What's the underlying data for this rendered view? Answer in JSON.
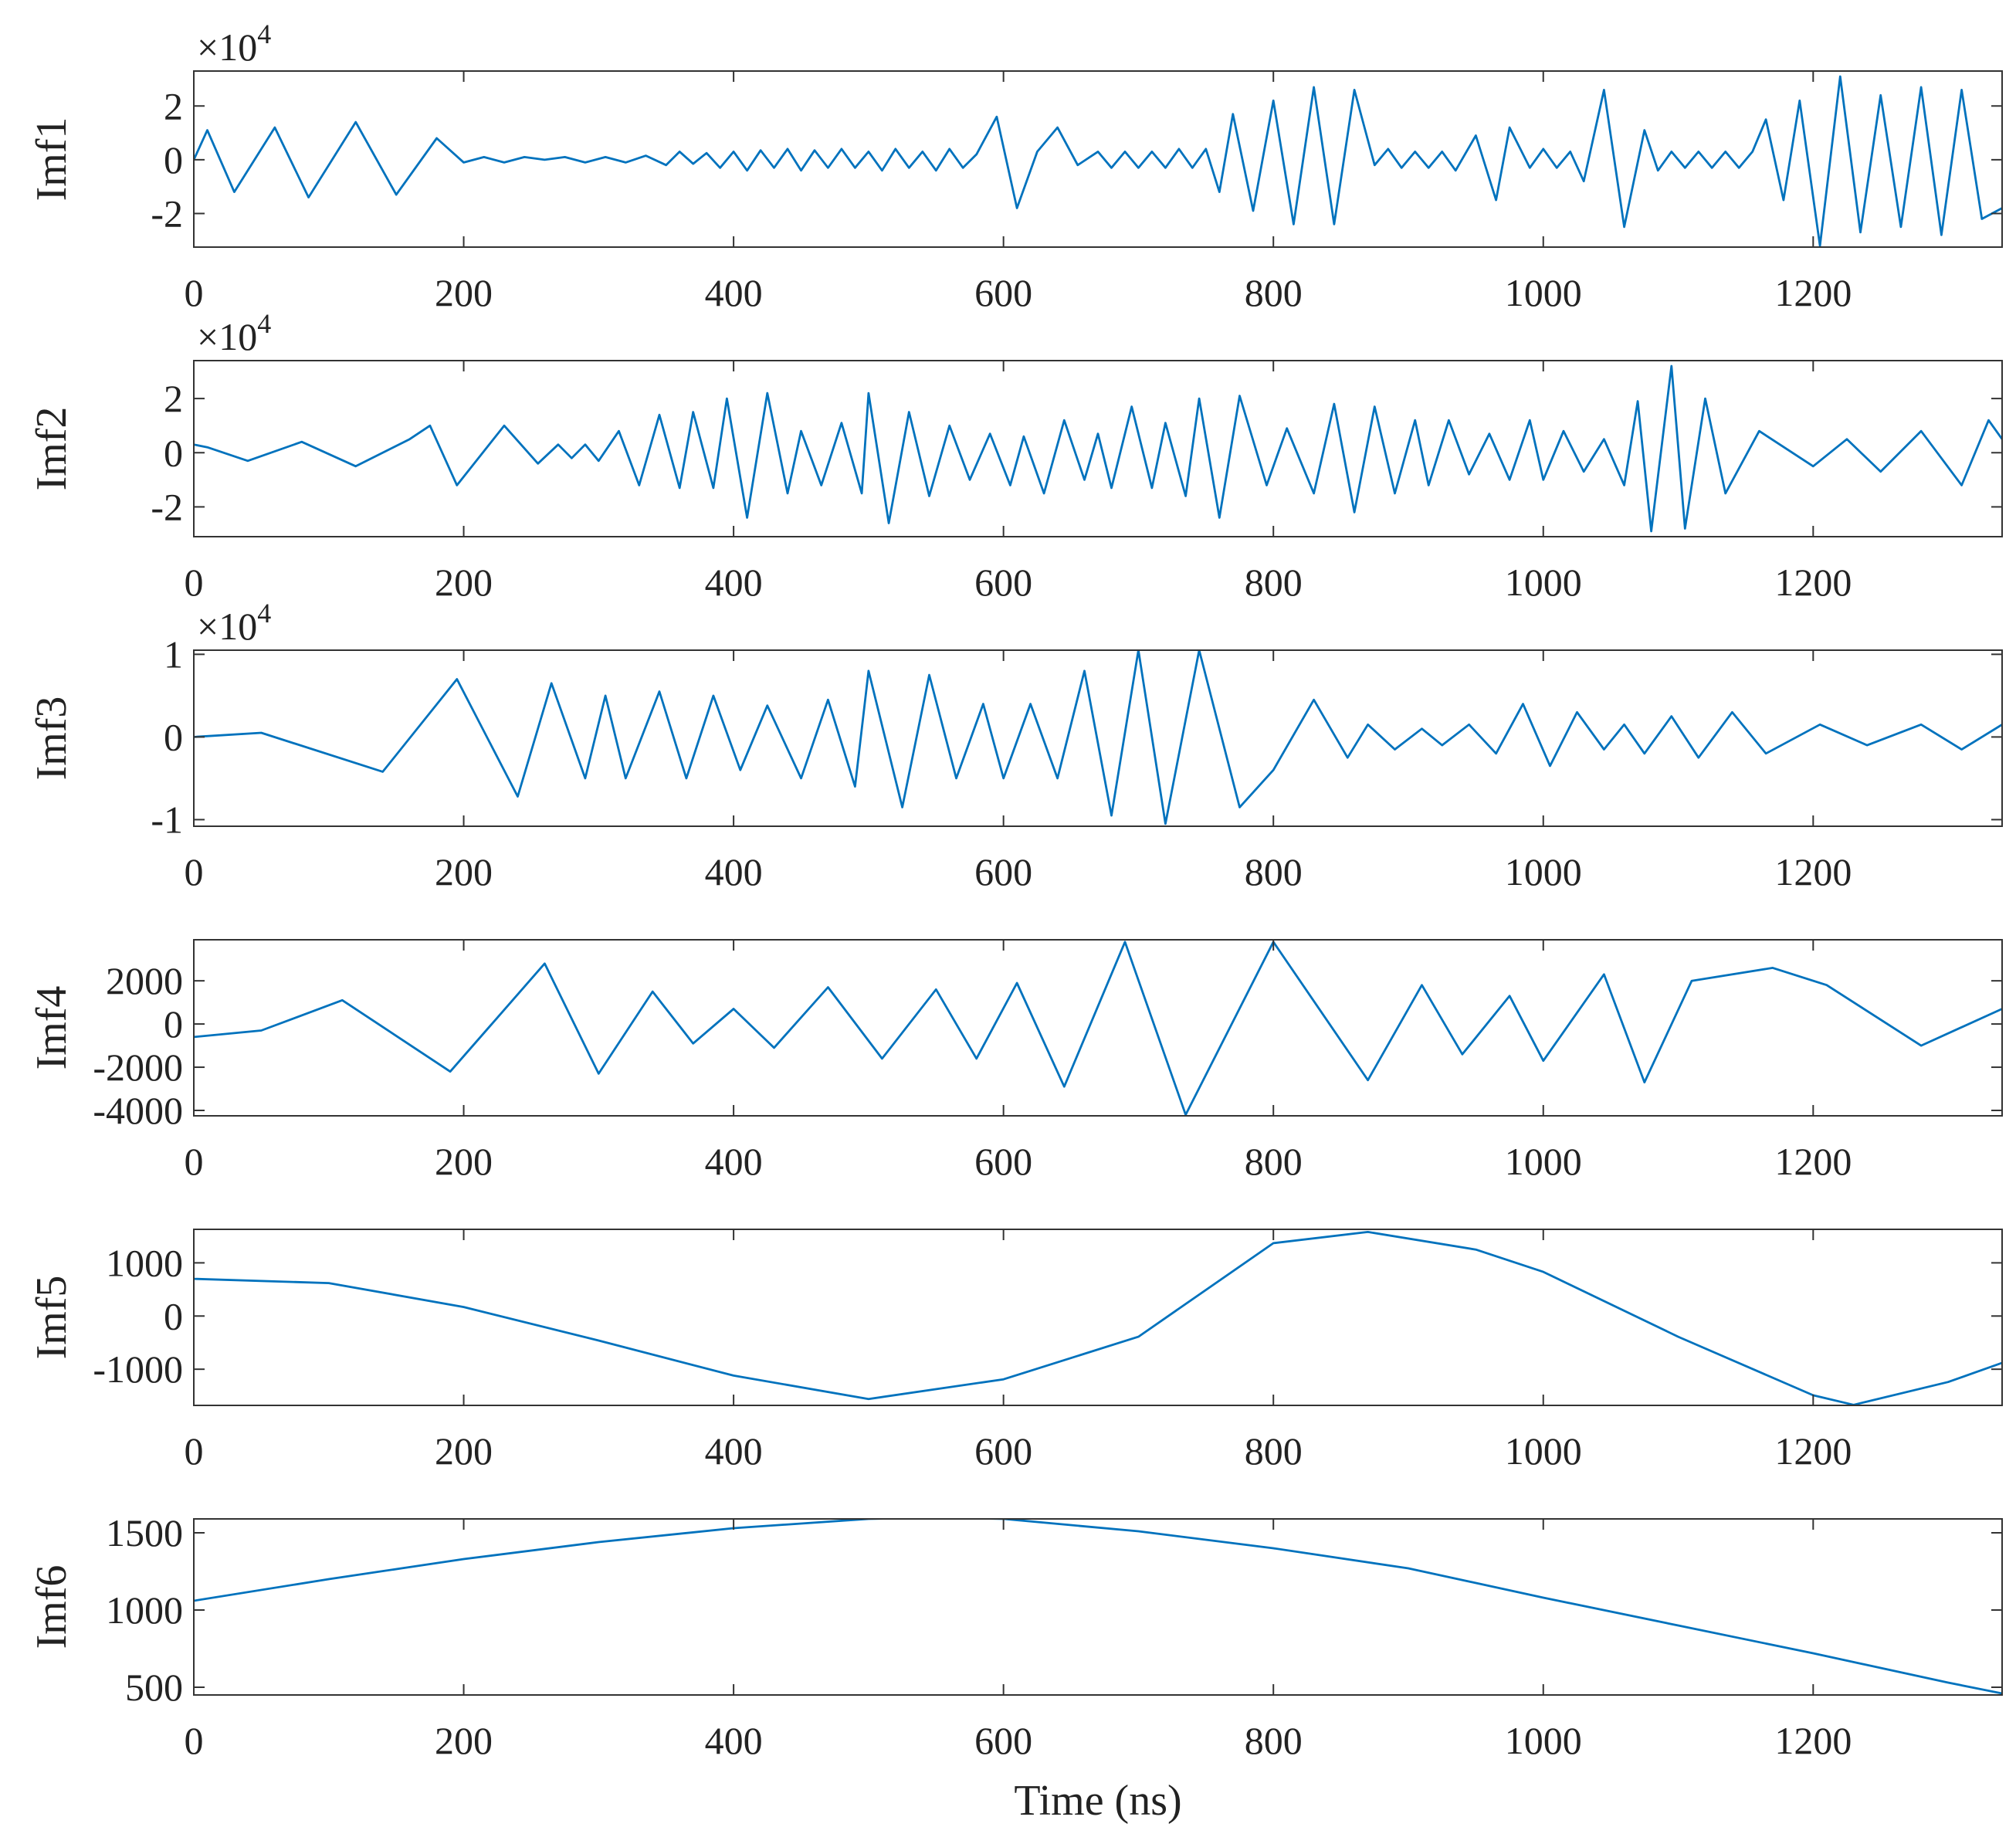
{
  "chart_data": [
    {
      "type": "line",
      "ylabel": "Imf1",
      "y_multiplier_base": "×10",
      "y_multiplier_power": "4",
      "color": "#0072bd",
      "xlim": [
        0,
        1340
      ],
      "xticks": [
        0,
        200,
        400,
        600,
        800,
        1000,
        1200
      ],
      "ylim": [
        -3.25,
        3.3
      ],
      "yticks": [
        -2,
        0,
        2
      ],
      "x": [
        0,
        10,
        30,
        60,
        85,
        120,
        150,
        180,
        200,
        215,
        230,
        245,
        260,
        275,
        290,
        305,
        320,
        335,
        350,
        360,
        370,
        380,
        390,
        400,
        410,
        420,
        430,
        440,
        450,
        460,
        470,
        480,
        490,
        500,
        510,
        520,
        530,
        540,
        550,
        560,
        570,
        580,
        595,
        610,
        625,
        640,
        655,
        670,
        680,
        690,
        700,
        710,
        720,
        730,
        740,
        750,
        760,
        770,
        785,
        800,
        815,
        830,
        845,
        860,
        875,
        885,
        895,
        905,
        915,
        925,
        935,
        950,
        965,
        975,
        990,
        1000,
        1010,
        1020,
        1030,
        1045,
        1060,
        1075,
        1085,
        1095,
        1105,
        1115,
        1125,
        1135,
        1145,
        1155,
        1165,
        1178,
        1190,
        1205,
        1220,
        1235,
        1250,
        1265,
        1280,
        1295,
        1310,
        1325,
        1340
      ],
      "values": [
        0,
        1.1,
        -1.2,
        1.2,
        -1.4,
        1.4,
        -1.3,
        0.8,
        -0.1,
        0.1,
        -0.1,
        0.1,
        0,
        0.1,
        -0.1,
        0.1,
        -0.1,
        0.15,
        -0.2,
        0.3,
        -0.15,
        0.25,
        -0.3,
        0.3,
        -0.4,
        0.35,
        -0.3,
        0.4,
        -0.4,
        0.35,
        -0.3,
        0.4,
        -0.3,
        0.3,
        -0.4,
        0.4,
        -0.3,
        0.3,
        -0.4,
        0.4,
        -0.3,
        0.2,
        1.6,
        -1.8,
        0.3,
        1.2,
        -0.2,
        0.3,
        -0.3,
        0.3,
        -0.3,
        0.3,
        -0.3,
        0.4,
        -0.3,
        0.4,
        -1.2,
        1.7,
        -1.9,
        2.2,
        -2.4,
        2.7,
        -2.4,
        2.6,
        -0.2,
        0.4,
        -0.3,
        0.3,
        -0.3,
        0.3,
        -0.4,
        0.9,
        -1.5,
        1.2,
        -0.3,
        0.4,
        -0.3,
        0.3,
        -0.8,
        2.6,
        -2.5,
        1.1,
        -0.4,
        0.3,
        -0.3,
        0.3,
        -0.3,
        0.3,
        -0.3,
        0.3,
        1.5,
        -1.5,
        2.2,
        -3.2,
        3.1,
        -2.7,
        2.4,
        -2.5,
        2.7,
        -2.8,
        2.6,
        -2.2,
        -1.8
      ]
    },
    {
      "type": "line",
      "ylabel": "Imf2",
      "y_multiplier_base": "×10",
      "y_multiplier_power": "4",
      "color": "#0072bd",
      "xlim": [
        0,
        1340
      ],
      "xticks": [
        0,
        200,
        400,
        600,
        800,
        1000,
        1200
      ],
      "ylim": [
        -3.1,
        3.4
      ],
      "yticks": [
        -2,
        0,
        2
      ],
      "x": [
        0,
        10,
        40,
        80,
        120,
        160,
        175,
        195,
        230,
        255,
        270,
        280,
        290,
        300,
        315,
        330,
        345,
        360,
        370,
        385,
        395,
        410,
        425,
        440,
        450,
        465,
        480,
        495,
        500,
        515,
        530,
        545,
        560,
        575,
        590,
        605,
        615,
        630,
        645,
        660,
        670,
        680,
        695,
        710,
        720,
        735,
        745,
        760,
        775,
        795,
        810,
        830,
        845,
        860,
        875,
        890,
        905,
        915,
        930,
        945,
        960,
        975,
        990,
        1000,
        1015,
        1030,
        1045,
        1060,
        1070,
        1080,
        1095,
        1105,
        1120,
        1135,
        1160,
        1200,
        1225,
        1250,
        1280,
        1310,
        1330,
        1340
      ],
      "values": [
        0.3,
        0.2,
        -0.3,
        0.4,
        -0.5,
        0.5,
        1.0,
        -1.2,
        1.0,
        -0.4,
        0.3,
        -0.2,
        0.3,
        -0.3,
        0.8,
        -1.2,
        1.4,
        -1.3,
        1.5,
        -1.3,
        2.0,
        -2.4,
        2.2,
        -1.5,
        0.8,
        -1.2,
        1.1,
        -1.5,
        2.2,
        -2.6,
        1.5,
        -1.6,
        1.0,
        -1.0,
        0.7,
        -1.2,
        0.6,
        -1.5,
        1.2,
        -1.0,
        0.7,
        -1.3,
        1.7,
        -1.3,
        1.1,
        -1.6,
        2.0,
        -2.4,
        2.1,
        -1.2,
        0.9,
        -1.5,
        1.8,
        -2.2,
        1.7,
        -1.5,
        1.2,
        -1.2,
        1.2,
        -0.8,
        0.7,
        -1.0,
        1.2,
        -1.0,
        0.8,
        -0.7,
        0.5,
        -1.2,
        1.9,
        -2.9,
        3.2,
        -2.8,
        2.0,
        -1.5,
        0.8,
        -0.5,
        0.5,
        -0.7,
        0.8,
        -1.2,
        1.2,
        0.5
      ]
    },
    {
      "type": "line",
      "ylabel": "Imf3",
      "y_multiplier_base": "×10",
      "y_multiplier_power": "4",
      "color": "#0072bd",
      "xlim": [
        0,
        1340
      ],
      "xticks": [
        0,
        200,
        400,
        600,
        800,
        1000,
        1200
      ],
      "ylim": [
        -1.08,
        1.05
      ],
      "yticks": [
        -1,
        0,
        1
      ],
      "x": [
        0,
        50,
        140,
        195,
        240,
        265,
        290,
        305,
        320,
        345,
        365,
        385,
        405,
        425,
        450,
        470,
        490,
        500,
        525,
        545,
        565,
        585,
        600,
        620,
        640,
        660,
        680,
        700,
        720,
        745,
        775,
        800,
        830,
        855,
        870,
        890,
        910,
        925,
        945,
        965,
        985,
        1005,
        1025,
        1045,
        1060,
        1075,
        1095,
        1115,
        1140,
        1165,
        1205,
        1240,
        1280,
        1310,
        1340
      ],
      "values": [
        0,
        0.05,
        -0.42,
        0.7,
        -0.72,
        0.65,
        -0.5,
        0.5,
        -0.5,
        0.55,
        -0.5,
        0.5,
        -0.4,
        0.38,
        -0.5,
        0.45,
        -0.6,
        0.8,
        -0.85,
        0.75,
        -0.5,
        0.4,
        -0.5,
        0.4,
        -0.5,
        0.8,
        -0.95,
        1.05,
        -1.05,
        1.05,
        -0.85,
        -0.4,
        0.45,
        -0.25,
        0.15,
        -0.15,
        0.1,
        -0.1,
        0.15,
        -0.2,
        0.4,
        -0.35,
        0.3,
        -0.15,
        0.15,
        -0.2,
        0.25,
        -0.25,
        0.3,
        -0.2,
        0.15,
        -0.1,
        0.15,
        -0.15,
        0.15
      ]
    },
    {
      "type": "line",
      "ylabel": "Imf4",
      "color": "#0072bd",
      "xlim": [
        0,
        1340
      ],
      "xticks": [
        0,
        200,
        400,
        600,
        800,
        1000,
        1200
      ],
      "ylim": [
        -4250,
        3900
      ],
      "yticks": [
        -4000,
        -2000,
        0,
        2000
      ],
      "x": [
        0,
        50,
        110,
        190,
        260,
        300,
        340,
        370,
        400,
        430,
        470,
        510,
        550,
        580,
        610,
        645,
        690,
        735,
        800,
        870,
        910,
        940,
        975,
        1000,
        1045,
        1075,
        1110,
        1170,
        1210,
        1280,
        1340
      ],
      "values": [
        -600,
        -300,
        1100,
        -2200,
        2800,
        -2300,
        1500,
        -900,
        700,
        -1100,
        1700,
        -1600,
        1600,
        -1600,
        1900,
        -2900,
        3800,
        -4200,
        3800,
        -2600,
        1800,
        -1400,
        1300,
        -1700,
        2300,
        -2700,
        2000,
        2600,
        1800,
        -1000,
        700
      ]
    },
    {
      "type": "line",
      "ylabel": "Imf5",
      "color": "#0072bd",
      "xlim": [
        0,
        1340
      ],
      "xticks": [
        0,
        200,
        400,
        600,
        800,
        1000,
        1200
      ],
      "ylim": [
        -1680,
        1630
      ],
      "yticks": [
        -1000,
        0,
        1000
      ],
      "x": [
        0,
        100,
        200,
        300,
        400,
        500,
        600,
        700,
        800,
        870,
        950,
        1000,
        1100,
        1200,
        1230,
        1300,
        1340
      ],
      "values": [
        700,
        620,
        170,
        -460,
        -1120,
        -1560,
        -1190,
        -390,
        1370,
        1580,
        1250,
        830,
        -390,
        -1490,
        -1670,
        -1240,
        -880
      ]
    },
    {
      "type": "line",
      "ylabel": "Imf6",
      "xlabel": "Time (ns)",
      "color": "#0072bd",
      "xlim": [
        0,
        1340
      ],
      "xticks": [
        0,
        200,
        400,
        600,
        800,
        1000,
        1200
      ],
      "ylim": [
        450,
        1590
      ],
      "yticks": [
        500,
        1000,
        1500
      ],
      "x": [
        0,
        100,
        200,
        300,
        400,
        500,
        550,
        600,
        700,
        800,
        900,
        1000,
        1100,
        1200,
        1300,
        1340
      ],
      "values": [
        1060,
        1200,
        1330,
        1440,
        1530,
        1590,
        1600,
        1590,
        1510,
        1400,
        1270,
        1080,
        900,
        720,
        530,
        460
      ]
    }
  ]
}
